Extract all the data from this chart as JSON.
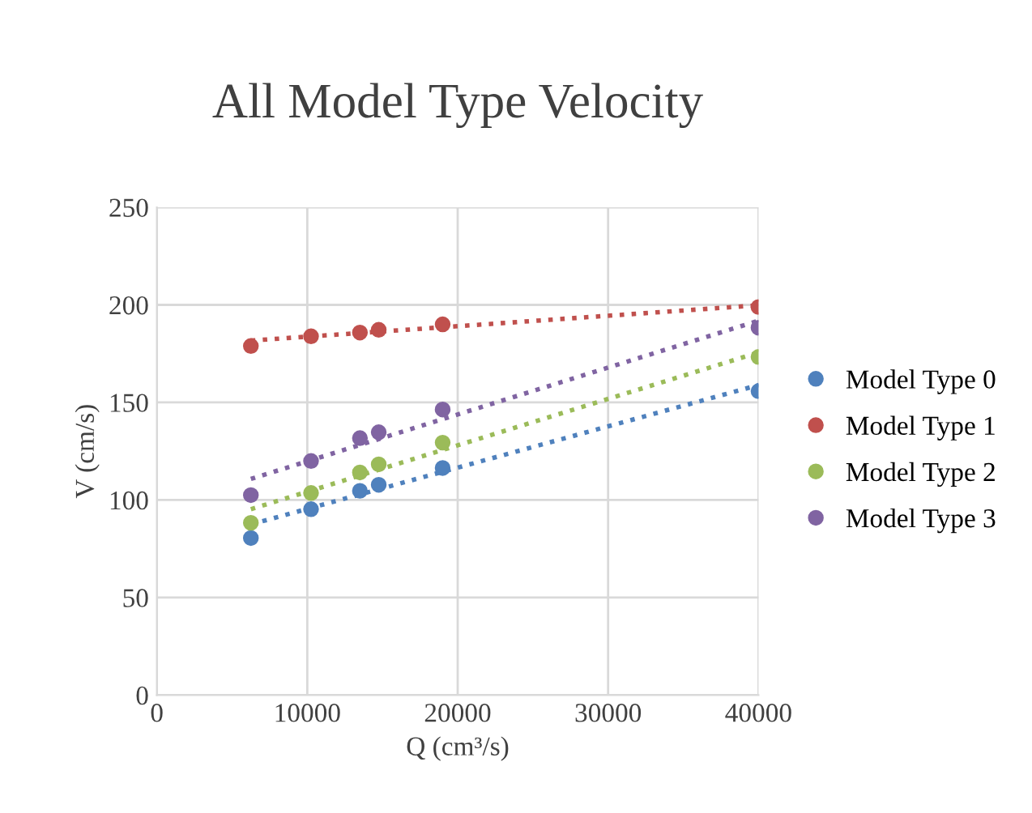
{
  "chart_data": {
    "type": "scatter",
    "title": "All Model Type Velocity",
    "xlabel": "Q (cm³/s)",
    "ylabel": "V (cm/s)",
    "xlim": [
      0,
      40000
    ],
    "xticks": [
      0,
      10000,
      20000,
      30000,
      40000
    ],
    "ylim": [
      0,
      250
    ],
    "yticks": [
      0,
      50,
      100,
      150,
      200,
      250
    ],
    "grid": true,
    "legend": "right",
    "marker": "circle",
    "series": [
      {
        "name": "Model Type 0",
        "color": "#4f81bd",
        "x": [
          6250,
          10250,
          13500,
          14750,
          19000,
          40000
        ],
        "values": [
          80.5,
          95.3,
          104.7,
          107.8,
          116.4,
          155.8
        ]
      },
      {
        "name": "Model Type 1",
        "color": "#c0504d",
        "x": [
          6250,
          10250,
          13500,
          14750,
          19000,
          40000
        ],
        "values": [
          178.9,
          183.9,
          185.8,
          187.2,
          190,
          198.9
        ]
      },
      {
        "name": "Model Type 2",
        "color": "#9bbb59",
        "x": [
          6250,
          10250,
          13500,
          14750,
          19000,
          40000
        ],
        "values": [
          88.3,
          103.6,
          114.1,
          118.3,
          129.4,
          173.3
        ]
      },
      {
        "name": "Model Type 3",
        "color": "#8064a2",
        "x": [
          6250,
          10250,
          13500,
          14750,
          19000,
          40000
        ],
        "values": [
          102.5,
          120,
          131.7,
          134.7,
          146.4,
          188.3
        ]
      },
      {
        "type": "line",
        "line_style": "dotted",
        "marker": "none",
        "color": "#4f81bd",
        "x": [
          6250,
          40000
        ],
        "values": [
          87.5,
          158.9
        ]
      },
      {
        "type": "line",
        "line_style": "dotted",
        "marker": "none",
        "color": "#c0504d",
        "x": [
          6250,
          40000
        ],
        "values": [
          181.7,
          199.8
        ]
      },
      {
        "type": "line",
        "line_style": "dotted",
        "marker": "none",
        "color": "#9bbb59",
        "x": [
          6250,
          40000
        ],
        "values": [
          95.3,
          175.6
        ]
      },
      {
        "type": "line",
        "line_style": "dotted",
        "marker": "none",
        "color": "#8064a2",
        "x": [
          6250,
          40000
        ],
        "values": [
          110.8,
          191.9
        ]
      }
    ]
  }
}
